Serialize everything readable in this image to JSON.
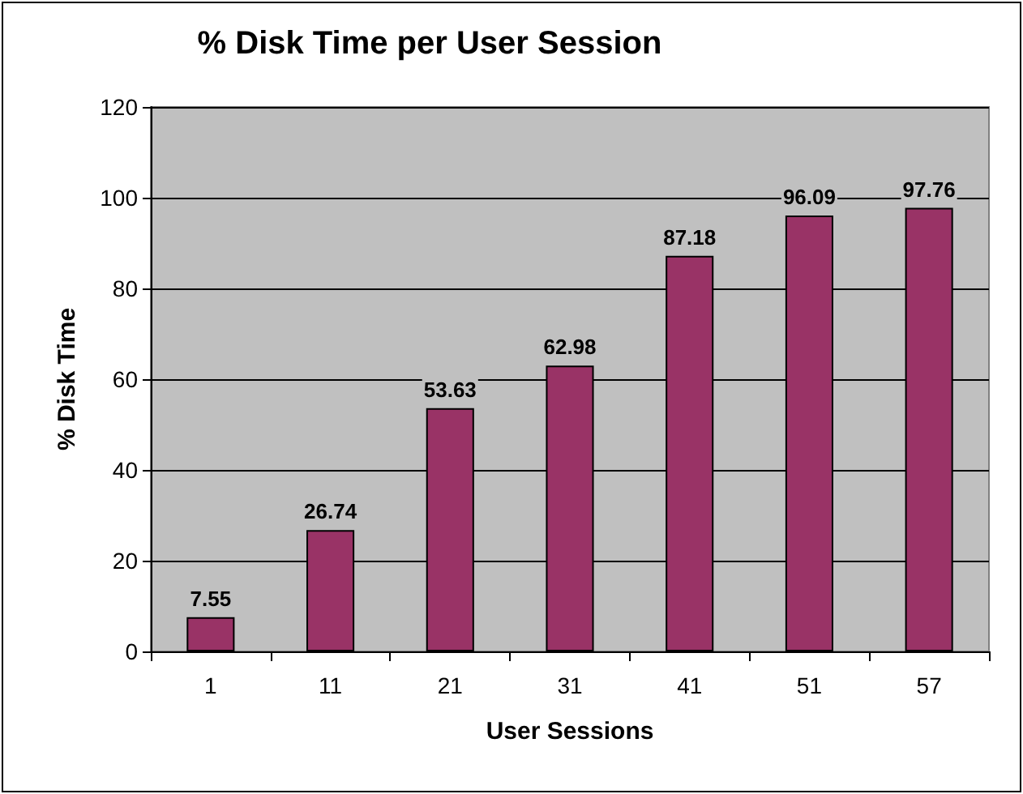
{
  "chart_data": {
    "type": "bar",
    "title": "% Disk Time per User Session",
    "xlabel": "User Sessions",
    "ylabel": "% Disk Time",
    "categories": [
      "1",
      "11",
      "21",
      "31",
      "41",
      "51",
      "57"
    ],
    "values": [
      7.55,
      26.74,
      53.63,
      62.98,
      87.18,
      96.09,
      97.76
    ],
    "color": "#993366",
    "ylim": [
      0,
      120
    ],
    "yticks": [
      0,
      20,
      40,
      60,
      80,
      100,
      120
    ],
    "grid": "y",
    "data_labels": true
  }
}
